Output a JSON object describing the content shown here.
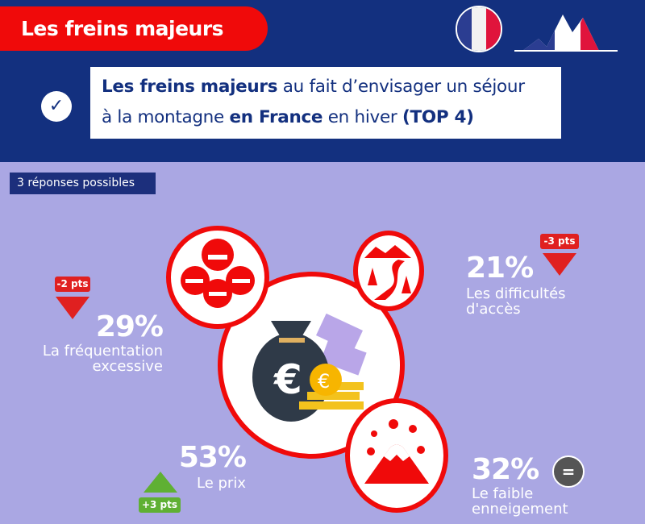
{
  "header": {
    "title": "Les freins majeurs",
    "flag_icon": "france-flag-icon",
    "logo_icon": "mountain-flag-logo"
  },
  "question": {
    "bold1": "Les freins majeurs",
    "text1": " au fait d’envisager un séjour",
    "text2": "à la montagne ",
    "bold2": "en France",
    "text3": " en hiver ",
    "bold3": "(TOP 4)"
  },
  "badge": "3 réponses possibles",
  "colors": {
    "navy": "#13307f",
    "red": "#f00a0a",
    "lavender": "#aaa7e3",
    "down": "#e02020",
    "up": "#5fb033",
    "equal": "#555555"
  },
  "items": [
    {
      "percent": "53%",
      "label1": "Le prix",
      "change": "+3 pts",
      "trend": "up",
      "icon": "money-bag-euro-icon"
    },
    {
      "percent": "32%",
      "label1": "Le faible",
      "label2": "enneigement",
      "change": "=",
      "trend": "equal",
      "icon": "mountain-snow-icon"
    },
    {
      "percent": "29%",
      "label1": "La fréquentation",
      "label2": "excessive",
      "change": "-2 pts",
      "trend": "down",
      "icon": "crowd-skiers-icon"
    },
    {
      "percent": "21%",
      "label1": "Les difficultés",
      "label2": "d'accès",
      "change": "-3 pts",
      "trend": "down",
      "icon": "winding-road-icon"
    }
  ]
}
